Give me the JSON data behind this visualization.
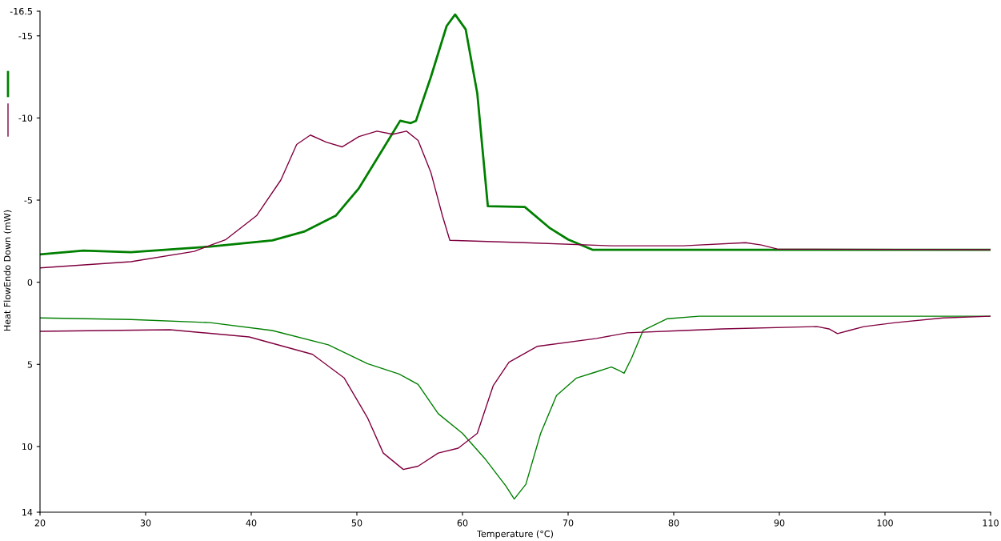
{
  "chart_data": {
    "type": "line",
    "xlabel": "Temperature (°C)",
    "ylabel": "Heat FlowEndo Down (mW)",
    "xlim": [
      20,
      110
    ],
    "xticks": [
      20,
      30,
      40,
      50,
      60,
      70,
      80,
      90,
      100,
      110
    ],
    "ylim": [
      14,
      -16.5
    ],
    "yticks": [
      -16.5,
      -15,
      -10,
      -5,
      0,
      5,
      10,
      14
    ],
    "grid": false,
    "legend": false,
    "marker": "none",
    "line_style": "solid",
    "series": [
      {
        "color": "#008000",
        "x": [
          20,
          24.1,
          28.6,
          36.1,
          42.0,
          45.0,
          48.0,
          50.2,
          52.5,
          54.1,
          55.1,
          55.6,
          57.0,
          58.5,
          59.3,
          60.3,
          61.4,
          62.4,
          65.9,
          68.2,
          70.0,
          72.3,
          110
        ],
        "values": [
          -1.69,
          -1.93,
          -1.83,
          -2.17,
          -2.55,
          -3.08,
          -4.05,
          -5.73,
          -8.14,
          -9.83,
          -9.69,
          -9.83,
          -12.48,
          -15.6,
          -16.3,
          -15.4,
          -11.5,
          -4.63,
          -4.58,
          -3.33,
          -2.6,
          -1.98,
          -1.98
        ]
      },
      {
        "color": "#800040",
        "x": [
          20,
          28.6,
          34.6,
          37.6,
          40.5,
          42.8,
          44.3,
          45.6,
          47.1,
          48.6,
          50.2,
          51.9,
          53.4,
          54.7,
          55.8,
          57.0,
          58.1,
          58.8,
          65.9,
          74.1,
          80.9,
          86.8,
          88.3,
          89.8,
          110
        ],
        "values": [
          -0.87,
          -1.25,
          -1.88,
          -2.6,
          -4.05,
          -6.22,
          -8.39,
          -8.96,
          -8.53,
          -8.24,
          -8.87,
          -9.2,
          -9.01,
          -9.2,
          -8.63,
          -6.7,
          -4.05,
          -2.55,
          -2.41,
          -2.22,
          -2.22,
          -2.41,
          -2.27,
          -2.02,
          -1.98
        ]
      },
      {
        "color": "#008000",
        "x": [
          20,
          28.6,
          36.1,
          42.0,
          47.3,
          51.0,
          54.0,
          55.8,
          57.7,
          60.0,
          62.2,
          64.1,
          64.9,
          66.0,
          67.4,
          68.9,
          70.8,
          72.7,
          74.1,
          74.9,
          75.3,
          76.0,
          77.1,
          79.4,
          82.4,
          110
        ],
        "values": [
          2.17,
          2.27,
          2.46,
          2.94,
          3.81,
          4.96,
          5.59,
          6.22,
          8.0,
          9.2,
          10.8,
          12.4,
          13.2,
          12.3,
          9.2,
          6.9,
          5.83,
          5.45,
          5.16,
          5.4,
          5.54,
          4.63,
          2.94,
          2.22,
          2.07,
          2.07
        ]
      },
      {
        "color": "#800040",
        "x": [
          20,
          32.3,
          39.8,
          45.8,
          48.8,
          51.0,
          52.5,
          54.4,
          55.8,
          57.7,
          59.6,
          61.4,
          62.9,
          64.4,
          67.1,
          72.7,
          75.6,
          80.9,
          84.6,
          93.6,
          94.7,
          95.5,
          96.6,
          98.0,
          101.0,
          105.5,
          110
        ],
        "values": [
          2.99,
          2.89,
          3.33,
          4.39,
          5.83,
          8.24,
          10.4,
          11.4,
          11.2,
          10.4,
          10.1,
          9.2,
          6.31,
          4.87,
          3.9,
          3.42,
          3.08,
          2.94,
          2.84,
          2.7,
          2.84,
          3.13,
          2.94,
          2.7,
          2.46,
          2.17,
          2.07
        ]
      }
    ]
  }
}
